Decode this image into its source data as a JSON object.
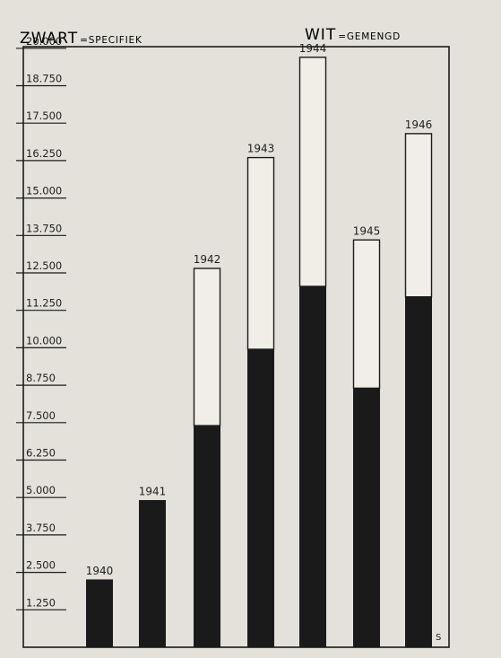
{
  "legend": {
    "black_word": "ZWART",
    "black_desc": "SPECIFIEK",
    "white_word": "WIT",
    "white_desc": "GEMENGD"
  },
  "corner_mark": "S",
  "chart_data": {
    "type": "bar",
    "stacked": true,
    "categories": [
      "1940",
      "1941",
      "1942",
      "1943",
      "1944",
      "1945",
      "1946"
    ],
    "series": [
      {
        "name": "ZWART = SPECIFIEK",
        "color": "#1a1a1a",
        "values": [
          2250,
          4900,
          7400,
          9950,
          12050,
          8650,
          11700
        ]
      },
      {
        "name": "WIT = GEMENGD",
        "color": "#f0eee7",
        "values": [
          0,
          0,
          5250,
          6400,
          7650,
          4950,
          5450
        ]
      }
    ],
    "totals": [
      2250,
      4900,
      12650,
      16350,
      19700,
      13600,
      17150
    ],
    "ylim": [
      0,
      21000
    ],
    "yticks": [
      1250,
      2500,
      3750,
      5000,
      6250,
      7500,
      8750,
      10000,
      11250,
      12500,
      13750,
      15000,
      16250,
      17500,
      18750,
      20000
    ],
    "ytick_labels": [
      "1.250",
      "2.500",
      "3.750",
      "5.000",
      "6.250",
      "7.500",
      "8.750",
      "10.000",
      "11.250",
      "12.500",
      "13.750",
      "15.000",
      "16.250",
      "17.500",
      "18.750",
      "20.000"
    ],
    "title": "",
    "xlabel": "",
    "ylabel": "",
    "grid": false
  }
}
